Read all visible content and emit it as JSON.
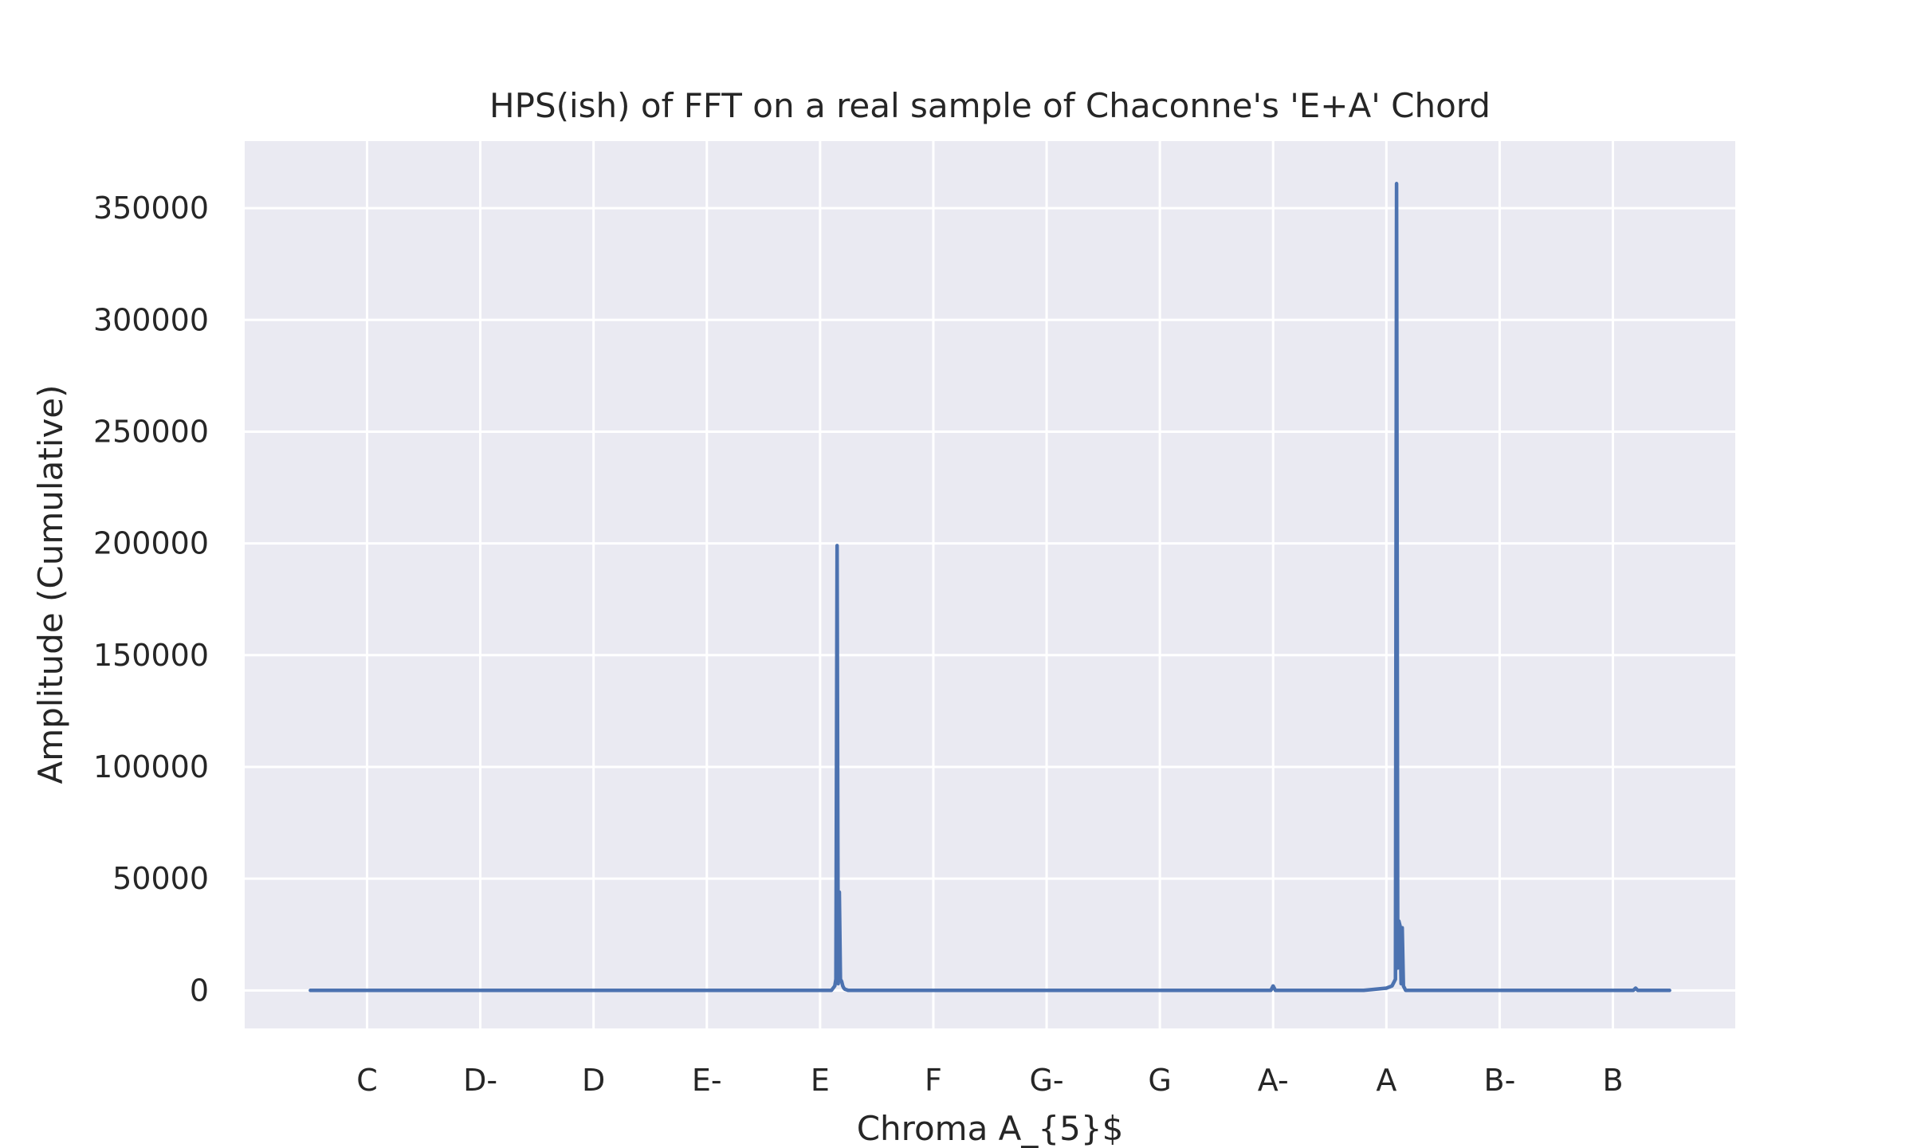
{
  "chart_data": {
    "type": "line",
    "title": "HPS(ish) of FFT on a real sample of Chaconne's 'E+A' Chord",
    "xlabel": "Chroma A_{5}$",
    "ylabel": "Amplitude (Cumulative)",
    "categories": [
      "C",
      "D-",
      "D",
      "E-",
      "E",
      "F",
      "G-",
      "G",
      "A-",
      "A",
      "B-",
      "B"
    ],
    "xlim": [
      -1.08,
      12.08
    ],
    "ylim": [
      -17000,
      380000
    ],
    "yticks": [
      0,
      50000,
      100000,
      150000,
      200000,
      250000,
      300000,
      350000
    ],
    "grid": true,
    "legend": "none",
    "colors": {
      "line": "#4c72b0",
      "plot_bg": "#eaeaf2",
      "grid": "#ffffff"
    },
    "series": [
      {
        "name": "",
        "x": [
          -0.5,
          3.5,
          4.1,
          4.13,
          4.14,
          4.15,
          4.16,
          4.17,
          4.18,
          4.19,
          4.2,
          4.21,
          4.22,
          4.25,
          4.3,
          7.9,
          7.98,
          8.0,
          8.02,
          8.06,
          8.8,
          8.9,
          9.0,
          9.05,
          9.08,
          9.09,
          9.1,
          9.11,
          9.12,
          9.13,
          9.14,
          9.15,
          9.16,
          9.17,
          9.2,
          9.3,
          10.0,
          11.1,
          11.18,
          11.2,
          11.22,
          11.3,
          11.5
        ],
        "values": [
          0,
          0,
          0,
          2000,
          5000,
          199000,
          3000,
          44000,
          5000,
          4000,
          2000,
          1000,
          500,
          0,
          0,
          0,
          0,
          2000,
          0,
          0,
          0,
          500,
          1000,
          2000,
          5000,
          361000,
          10000,
          31000,
          29000,
          3000,
          28000,
          2000,
          1000,
          0,
          0,
          0,
          0,
          0,
          0,
          1000,
          0,
          0,
          0
        ]
      }
    ]
  }
}
